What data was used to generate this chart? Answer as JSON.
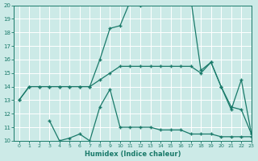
{
  "background_color": "#cceae7",
  "grid_color": "#ffffff",
  "line_color": "#1a7a6a",
  "xlabel": "Humidex (Indice chaleur)",
  "xlim": [
    -0.5,
    23
  ],
  "ylim": [
    10,
    20
  ],
  "yticks": [
    10,
    11,
    12,
    13,
    14,
    15,
    16,
    17,
    18,
    19,
    20
  ],
  "xticks": [
    0,
    1,
    2,
    3,
    4,
    5,
    6,
    7,
    8,
    9,
    10,
    11,
    12,
    13,
    14,
    15,
    16,
    17,
    18,
    19,
    20,
    21,
    22,
    23
  ],
  "line1_x": [
    0,
    1,
    2,
    3,
    4,
    5,
    6,
    7,
    8,
    9,
    10,
    11,
    12,
    13,
    14,
    15,
    16,
    17,
    18,
    19,
    20,
    21,
    22,
    23
  ],
  "line1_y": [
    13,
    14,
    14,
    14,
    14,
    14,
    14,
    14,
    14.5,
    15,
    15.5,
    15.5,
    15.5,
    15.5,
    15.5,
    15.5,
    15.5,
    15.5,
    15,
    15.8,
    14,
    12.3,
    14.5,
    10.5
  ],
  "line2_x": [
    0,
    1,
    2,
    3,
    4,
    5,
    6,
    7,
    8,
    9,
    10,
    11,
    12,
    13,
    14,
    15,
    16,
    17,
    18,
    19,
    20,
    21,
    22,
    23
  ],
  "line2_y": [
    13,
    14,
    14,
    14,
    14,
    14,
    14,
    14,
    16,
    18.3,
    18.5,
    20.3,
    20,
    20.2,
    20.3,
    20.3,
    20.5,
    20.5,
    15.2,
    15.8,
    14,
    12.5,
    12.3,
    10.5
  ],
  "line3_x": [
    3,
    4,
    5,
    6,
    7,
    8,
    9,
    10,
    11,
    12,
    13,
    14,
    15,
    16,
    17,
    18,
    19,
    20,
    21,
    22,
    23
  ],
  "line3_y": [
    11.5,
    10,
    10.2,
    10.5,
    10,
    12.5,
    13.8,
    11,
    11,
    11,
    11,
    10.8,
    10.8,
    10.8,
    10.5,
    10.5,
    10.5,
    10.3,
    10.3,
    10.3,
    10.3
  ]
}
